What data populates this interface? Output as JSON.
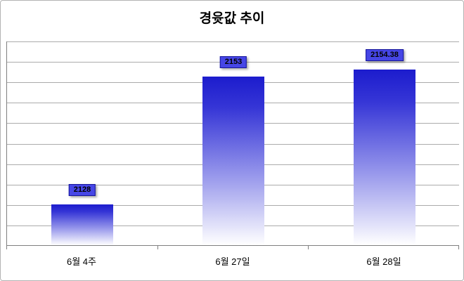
{
  "chart_data": {
    "type": "bar",
    "title": "경윳값 추이",
    "categories": [
      "6월 4주",
      "6월 27일",
      "6월 28일"
    ],
    "values": [
      2128,
      2153,
      2154.38
    ],
    "value_labels": [
      "2128",
      "2153",
      "2154.38"
    ],
    "xlabel": "",
    "ylabel": "",
    "ylim": [
      2120,
      2160
    ],
    "grid_interval": 4,
    "grid": true,
    "legend": false,
    "colors": {
      "bar_top": "#1c1ccd",
      "bar_bottom": "#ffffff",
      "label_bg": "#4646e6",
      "label_border": "#16169a",
      "gridline": "#ababab",
      "axis": "#7f7f7f"
    }
  }
}
